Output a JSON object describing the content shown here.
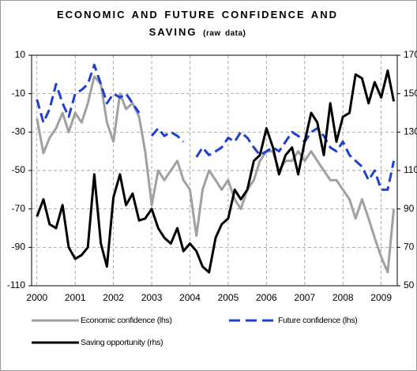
{
  "chart_data": {
    "type": "line",
    "title": "ECONOMIC AND FUTURE CONFIDENCE AND SAVING",
    "subtitle": "(raw data)",
    "x": [
      2000.0,
      2000.17,
      2000.33,
      2000.5,
      2000.67,
      2000.83,
      2001.0,
      2001.17,
      2001.33,
      2001.5,
      2001.67,
      2001.83,
      2002.0,
      2002.17,
      2002.33,
      2002.5,
      2002.67,
      2002.83,
      2003.0,
      2003.17,
      2003.33,
      2003.5,
      2003.67,
      2003.83,
      2004.0,
      2004.17,
      2004.33,
      2004.5,
      2004.67,
      2004.83,
      2005.0,
      2005.17,
      2005.33,
      2005.5,
      2005.67,
      2005.83,
      2006.0,
      2006.17,
      2006.33,
      2006.5,
      2006.67,
      2006.83,
      2007.0,
      2007.17,
      2007.33,
      2007.5,
      2007.67,
      2007.83,
      2008.0,
      2008.17,
      2008.33,
      2008.5,
      2008.67,
      2008.83,
      2009.0,
      2009.17,
      2009.33
    ],
    "series": [
      {
        "name": "Economic confidence (lhs)",
        "color": "#a0a0a0",
        "style": "solid",
        "values": [
          -23,
          -41,
          -33,
          -28,
          -20,
          -30,
          -20,
          -25,
          -15,
          -1,
          -5,
          -25,
          -35,
          -10,
          -18,
          -15,
          -22,
          -40,
          -68,
          -50,
          -55,
          -50,
          -45,
          -55,
          -60,
          -84,
          -60,
          -50,
          -55,
          -60,
          -55,
          -65,
          -70,
          -60,
          -55,
          -45,
          -40,
          -40,
          -50,
          -45,
          -45,
          -40,
          -45,
          -40,
          -45,
          -50,
          -55,
          -55,
          -60,
          -65,
          -75,
          -65,
          -75,
          -85,
          -95,
          -103,
          -70
        ]
      },
      {
        "name": "Future confidence (lhs)",
        "color": "#1f3fd0",
        "style": "dashed",
        "values": [
          -13,
          -25,
          -18,
          -5,
          -15,
          -22,
          -10,
          -8,
          -5,
          5,
          -5,
          -15,
          -10,
          -12,
          -10,
          -15,
          -20,
          null,
          -32,
          -28,
          -32,
          -30,
          -32,
          -35,
          null,
          -43,
          -38,
          -42,
          -40,
          -38,
          -33,
          -35,
          -30,
          -33,
          -38,
          -42,
          -40,
          -38,
          -40,
          -35,
          -30,
          -32,
          -35,
          -30,
          -28,
          -32,
          -38,
          -40,
          -35,
          -42,
          -45,
          -48,
          -55,
          -50,
          -60,
          -60,
          -45
        ]
      },
      {
        "name": "Saving opportunity (rhs)",
        "color": "#000000",
        "style": "solid",
        "axis": "y2",
        "values": [
          86,
          95,
          82,
          80,
          92,
          70,
          64,
          66,
          70,
          108,
          72,
          60,
          96,
          108,
          92,
          98,
          84,
          85,
          90,
          80,
          75,
          72,
          80,
          68,
          72,
          68,
          60,
          57,
          75,
          82,
          85,
          100,
          95,
          100,
          115,
          118,
          132,
          122,
          108,
          118,
          122,
          108,
          125,
          140,
          135,
          118,
          145,
          125,
          138,
          140,
          160,
          158,
          145,
          156,
          148,
          162,
          146
        ]
      }
    ],
    "xlim": [
      1999.86,
      2009.42
    ],
    "xticks": [
      2000,
      2001,
      2002,
      2003,
      2004,
      2005,
      2006,
      2007,
      2008,
      2009
    ],
    "ylim": [
      -110,
      10
    ],
    "yticks": [
      -110,
      -90,
      -70,
      -50,
      -30,
      -10,
      10
    ],
    "y2lim": [
      50,
      170
    ],
    "y2ticks": [
      50,
      70,
      90,
      110,
      130,
      150,
      170
    ],
    "grid": true
  }
}
